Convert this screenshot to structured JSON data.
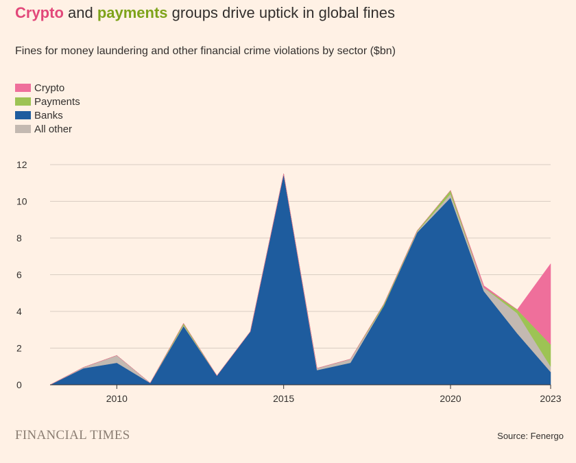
{
  "header": {
    "title_crypto": "Crypto",
    "title_and": " and ",
    "title_payments": "payments",
    "title_rest": " groups drive uptick in global fines",
    "subtitle": "Fines for money laundering and other financial crime violations by sector ($bn)"
  },
  "footer": {
    "brand": "FINANCIAL TIMES",
    "source": "Source: Fenergo"
  },
  "colors": {
    "crypto": "#ef6f9b",
    "payments": "#9dc354",
    "banks": "#1e5c9e",
    "all_other": "#c3b9b1",
    "grid": "#d9cdc2",
    "background": "#fff1e5"
  },
  "chart_data": {
    "type": "area",
    "stacked": true,
    "x": [
      2008,
      2009,
      2010,
      2011,
      2012,
      2013,
      2014,
      2015,
      2016,
      2017,
      2018,
      2019,
      2020,
      2021,
      2022,
      2023
    ],
    "series": [
      {
        "name": "Banks",
        "color": "#1e5c9e",
        "values": [
          0,
          0.9,
          1.2,
          0.1,
          3.2,
          0.5,
          2.9,
          11.5,
          0.8,
          1.2,
          4.3,
          8.3,
          10.2,
          5.1,
          2.8,
          0.7
        ]
      },
      {
        "name": "All other",
        "color": "#c3b9b1",
        "values": [
          0,
          0.05,
          0.4,
          0,
          0.05,
          0,
          0,
          0,
          0.1,
          0.2,
          0,
          0.05,
          0.2,
          0.2,
          1.1,
          0.3
        ]
      },
      {
        "name": "Payments",
        "color": "#9dc354",
        "values": [
          0,
          0,
          0,
          0,
          0.1,
          0,
          0,
          0,
          0,
          0,
          0.1,
          0.05,
          0.2,
          0,
          0.2,
          1.2
        ]
      },
      {
        "name": "Crypto",
        "color": "#ef6f9b",
        "values": [
          0,
          0,
          0,
          0,
          0,
          0,
          0,
          0,
          0,
          0,
          0,
          0,
          0,
          0.1,
          0,
          4.4
        ]
      }
    ],
    "legend": {
      "placement": "top-left",
      "items": [
        {
          "name": "Crypto",
          "color": "#ef6f9b"
        },
        {
          "name": "Payments",
          "color": "#9dc354"
        },
        {
          "name": "Banks",
          "color": "#1e5c9e"
        },
        {
          "name": "All other",
          "color": "#c3b9b1"
        }
      ]
    },
    "ylim": [
      0,
      12
    ],
    "y_ticks": [
      0,
      2,
      4,
      6,
      8,
      10,
      12
    ],
    "x_ticks": [
      2010,
      2015,
      2020,
      2023
    ],
    "xlim": [
      2008,
      2023
    ],
    "grid": true
  }
}
